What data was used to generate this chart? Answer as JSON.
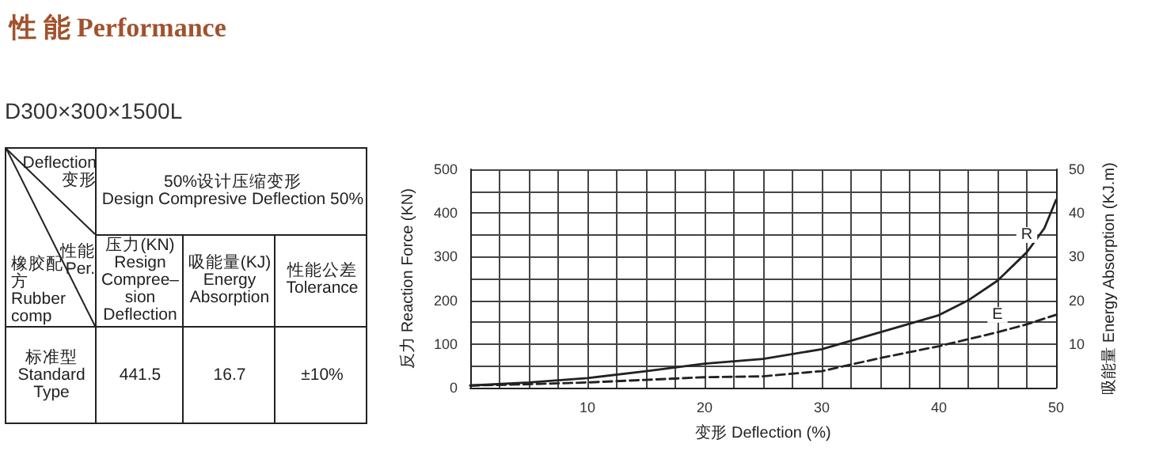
{
  "chart_data": [
    {
      "type": "other",
      "title": "性 能 Performance",
      "subtitle": "D300×300×1500L",
      "annotations": [
        "Deflection\n变形",
        "性能\nPer.",
        "橡胶配方\nRubber\ncomp",
        "50%设计压缩变形\nDesign Compresive Deflection 50%",
        "压力(KN)\nResign\nCompree–\nsion\nDeflection",
        "吸能量(KJ)\nEnergy\nAbsorption",
        "性能公差\nTolerance",
        "标准型\nStandard\nType",
        "441.5",
        "16.7",
        "±10%"
      ]
    },
    {
      "type": "line",
      "xlabel": "变形 Deflection (%)",
      "ylabel": "反力 Reaction Force (KN)",
      "y2label": "吸能量 Energy Absorption (KJ.m)",
      "xlim": [
        0,
        50
      ],
      "ylim": [
        0,
        500
      ],
      "y2lim": [
        0,
        50
      ],
      "xticks": [
        {
          "value": 0,
          "label": null
        },
        {
          "value": 2.5,
          "label": null
        },
        {
          "value": 5,
          "label": null
        },
        {
          "value": 7.5,
          "label": null
        },
        10,
        {
          "value": 12.5,
          "label": null
        },
        {
          "value": 15,
          "label": null
        },
        {
          "value": 17.5,
          "label": null
        },
        20,
        {
          "value": 22.5,
          "label": null
        },
        {
          "value": 25,
          "label": null
        },
        {
          "value": 27.5,
          "label": null
        },
        30,
        {
          "value": 32.5,
          "label": null
        },
        {
          "value": 35,
          "label": null
        },
        {
          "value": 37.5,
          "label": null
        },
        40,
        {
          "value": 42.5,
          "label": null
        },
        {
          "value": 45,
          "label": null
        },
        {
          "value": 47.5,
          "label": null
        },
        50
      ],
      "yticks": [
        0,
        {
          "value": 50,
          "label": null
        },
        100,
        {
          "value": 150,
          "label": null
        },
        200,
        {
          "value": 250,
          "label": null
        },
        300,
        {
          "value": 350,
          "label": null
        },
        400,
        {
          "value": 450,
          "label": null
        },
        500
      ],
      "y2ticks": [
        10,
        20,
        30,
        40,
        50
      ],
      "grid": true,
      "legend": false,
      "marker": "none",
      "series": [
        {
          "name": "R",
          "color": "#222222",
          "line_style": "solid",
          "x": [
            0,
            5,
            10,
            15,
            20,
            25,
            30,
            35,
            40,
            42.5,
            45,
            47.5,
            49,
            50
          ],
          "values": [
            5,
            12,
            22,
            38,
            55,
            66,
            88,
            127,
            166,
            200,
            245,
            310,
            365,
            430
          ]
        },
        {
          "name": "E",
          "color": "#222222",
          "line_style": "dashed",
          "axis": "y2",
          "x": [
            0,
            5,
            10,
            15,
            20,
            25,
            30,
            35,
            40,
            45,
            47.5,
            50
          ],
          "values": [
            0.5,
            0.8,
            1.2,
            1.8,
            2.4,
            2.6,
            3.8,
            6.8,
            9.5,
            12.7,
            14.5,
            16.7
          ]
        }
      ]
    }
  ]
}
